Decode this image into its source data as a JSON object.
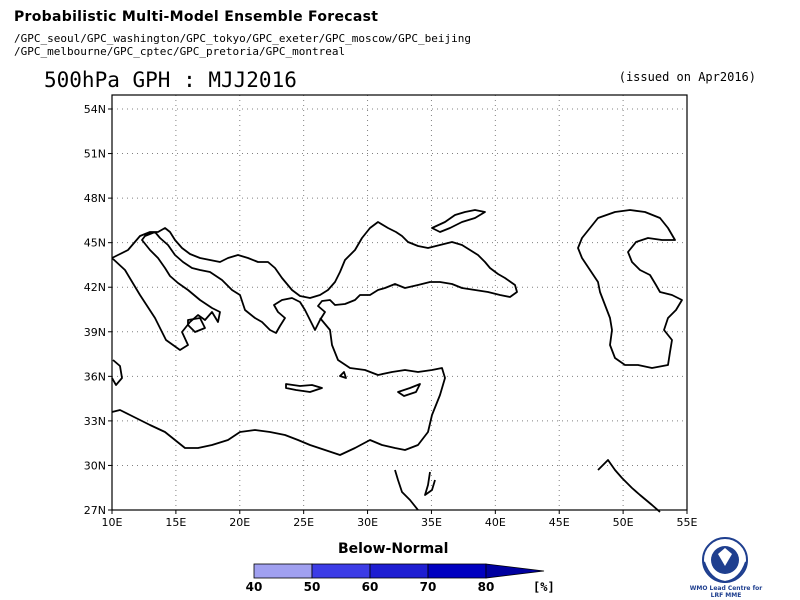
{
  "header": {
    "title": "Probabilistic Multi-Model Ensemble Forecast",
    "centres_line1": "/GPC_seoul/GPC_washington/GPC_tokyo/GPC_exeter/GPC_moscow/GPC_beijing",
    "centres_line2": "/GPC_melbourne/GPC_cptec/GPC_pretoria/GPC_montreal"
  },
  "map": {
    "title": "500hPa GPH : MJJ2016",
    "issued": "(issued on Apr2016)",
    "lat_labels": [
      "27N",
      "30N",
      "33N",
      "36N",
      "39N",
      "42N",
      "45N",
      "48N",
      "51N",
      "54N"
    ],
    "lon_labels": [
      "10E",
      "15E",
      "20E",
      "25E",
      "30E",
      "35E",
      "40E",
      "45E",
      "50E",
      "55E"
    ],
    "coastline_color": "#000000",
    "grid_color": "#808080"
  },
  "legend": {
    "title": "Below-Normal",
    "labels": [
      "40",
      "50",
      "60",
      "70",
      "80"
    ],
    "unit": "[%]",
    "colors": [
      "#a0a0f0",
      "#3c3ce6",
      "#1e1ed2",
      "#0000c0",
      "#0000a0"
    ]
  },
  "logo": {
    "icon": "wmo-emblem-icon",
    "text": "WMO Lead Centre for LRF MME"
  }
}
